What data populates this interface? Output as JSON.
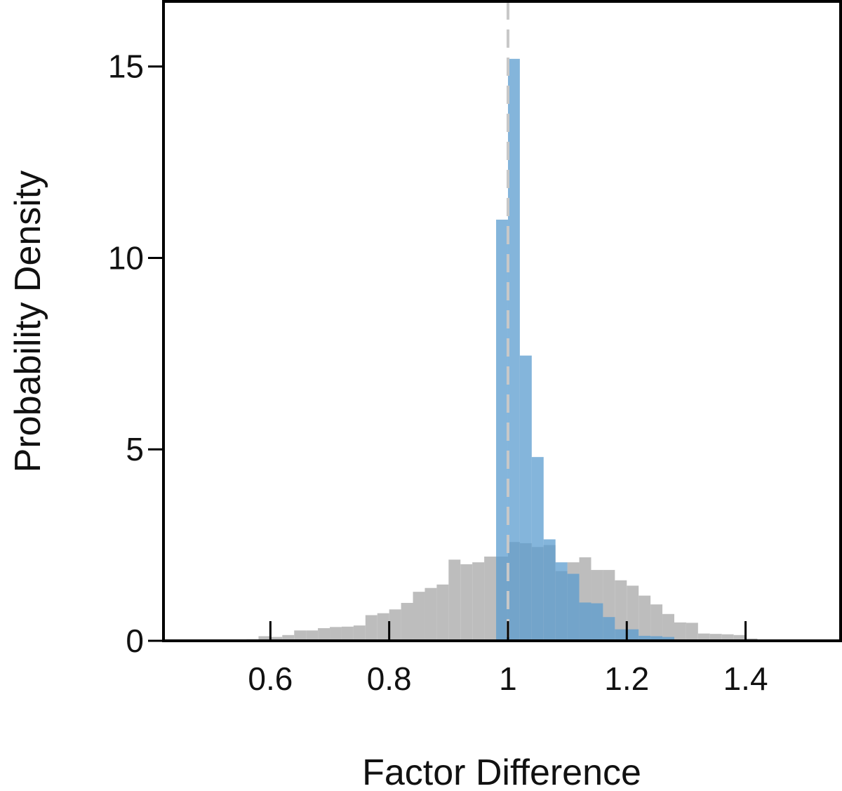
{
  "chart_data": {
    "type": "bar",
    "xlabel": "Factor Difference",
    "ylabel": "Probability Density",
    "xlim": [
      0.42,
      1.56
    ],
    "ylim": [
      0,
      16.7
    ],
    "x_ticks": [
      0.6,
      0.8,
      1.0,
      1.2,
      1.4
    ],
    "x_tick_labels": [
      "0.6",
      "0.8",
      "1",
      "1.2",
      "1.4"
    ],
    "y_ticks": [
      0,
      5,
      10,
      15
    ],
    "y_tick_labels": [
      "0",
      "5",
      "10",
      "15"
    ],
    "bin_width": 0.02,
    "reference_line": {
      "x": 1.0,
      "style": "dashed",
      "color": "#c8c8c8"
    },
    "grid": false,
    "series": [
      {
        "color": "#bdbdbd",
        "bin_starts": [
          0.54,
          0.56,
          0.58,
          0.6,
          0.62,
          0.64,
          0.66,
          0.68,
          0.7,
          0.72,
          0.74,
          0.76,
          0.78,
          0.8,
          0.82,
          0.84,
          0.86,
          0.88,
          0.9,
          0.92,
          0.94,
          0.96,
          0.98,
          1.0,
          1.02,
          1.04,
          1.06,
          1.08,
          1.1,
          1.12,
          1.14,
          1.16,
          1.18,
          1.2,
          1.22,
          1.24,
          1.26,
          1.28,
          1.3,
          1.32,
          1.34,
          1.36,
          1.38,
          1.4,
          1.42
        ],
        "values": [
          0.02,
          0.04,
          0.12,
          0.1,
          0.15,
          0.27,
          0.27,
          0.33,
          0.36,
          0.37,
          0.4,
          0.67,
          0.72,
          0.82,
          0.99,
          1.28,
          1.38,
          1.47,
          2.12,
          2.0,
          2.05,
          2.2,
          2.2,
          2.58,
          2.55,
          2.45,
          2.5,
          1.82,
          2.05,
          2.18,
          1.85,
          1.85,
          1.58,
          1.44,
          1.18,
          0.95,
          0.7,
          0.48,
          0.47,
          0.19,
          0.18,
          0.17,
          0.15,
          0.06,
          0.03
        ]
      },
      {
        "color": "#5b9ccf",
        "bin_starts": [
          0.98,
          1.0,
          1.02,
          1.04,
          1.06,
          1.08,
          1.1,
          1.12,
          1.14,
          1.16,
          1.18,
          1.2,
          1.22,
          1.24,
          1.26
        ],
        "values": [
          11.0,
          15.2,
          7.45,
          4.8,
          2.65,
          2.05,
          1.75,
          1.0,
          0.98,
          0.62,
          0.3,
          0.3,
          0.13,
          0.12,
          0.1
        ]
      }
    ]
  }
}
